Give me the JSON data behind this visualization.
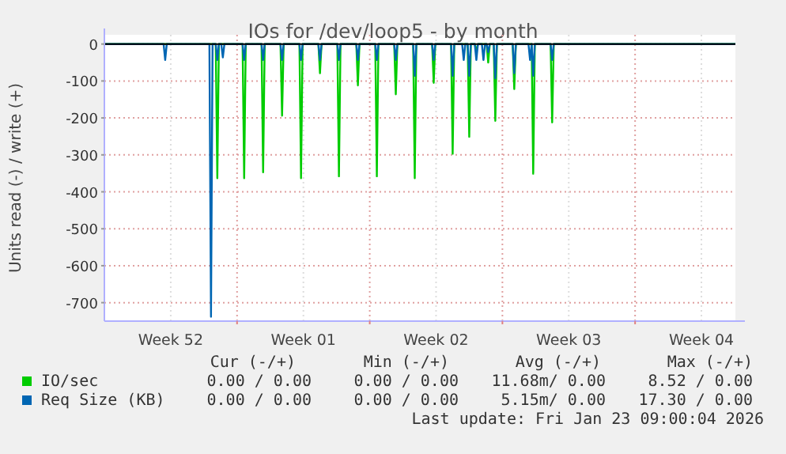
{
  "chart_data": {
    "type": "line",
    "title": "IOs for /dev/loop5 - by month",
    "ylabel": "Units read (-) / write (+)",
    "xlim": [
      "2025-12-22T00:00",
      "2026-01-24T07:00"
    ],
    "xticks": [
      {
        "value": "2025-12-25T12:00",
        "label": "Week 52"
      },
      {
        "value": "2025-12-29T00:00",
        "label": null
      },
      {
        "value": "2026-01-01T12:00",
        "label": "Week 01"
      },
      {
        "value": "2026-01-05T00:00",
        "label": null
      },
      {
        "value": "2026-01-08T12:00",
        "label": "Week 02"
      },
      {
        "value": "2026-01-12T00:00",
        "label": null
      },
      {
        "value": "2026-01-15T12:00",
        "label": "Week 03"
      },
      {
        "value": "2026-01-19T00:00",
        "label": null
      },
      {
        "value": "2026-01-22T12:00",
        "label": "Week 04"
      }
    ],
    "ylim": [
      -750,
      25
    ],
    "yticks": [
      -700,
      -600,
      -500,
      -400,
      -300,
      -200,
      -100,
      0
    ],
    "grid": true,
    "legend": "bottom left",
    "series": [
      {
        "name": "IO/sec",
        "color": "#00cc00",
        "x": [
          "2025-12-22T00:00",
          "2025-12-27T21:00",
          "2025-12-27T23:00",
          "2025-12-28T01:00",
          "2025-12-29T07:00",
          "2025-12-29T09:00",
          "2025-12-29T11:00",
          "2025-12-30T07:00",
          "2025-12-30T09:00",
          "2025-12-30T11:00",
          "2025-12-31T07:00",
          "2025-12-31T09:00",
          "2025-12-31T11:00",
          "2026-01-01T07:00",
          "2026-01-01T09:00",
          "2026-01-01T11:00",
          "2026-01-02T07:00",
          "2026-01-02T09:00",
          "2026-01-02T11:00",
          "2026-01-03T07:00",
          "2026-01-03T09:00",
          "2026-01-03T11:00",
          "2026-01-04T07:00",
          "2026-01-04T09:00",
          "2026-01-04T11:00",
          "2026-01-05T07:00",
          "2026-01-05T09:00",
          "2026-01-05T11:00",
          "2026-01-06T07:00",
          "2026-01-06T09:00",
          "2026-01-06T11:00",
          "2026-01-07T07:00",
          "2026-01-07T09:00",
          "2026-01-07T11:00",
          "2026-01-08T07:00",
          "2026-01-08T09:00",
          "2026-01-08T11:00",
          "2026-01-09T07:00",
          "2026-01-09T09:00",
          "2026-01-09T11:00",
          "2026-01-10T04:00",
          "2026-01-10T06:00",
          "2026-01-10T08:00",
          "2026-01-10T13:00",
          "2026-01-10T15:00",
          "2026-01-10T17:00",
          "2026-01-11T04:00",
          "2026-01-11T06:00",
          "2026-01-11T08:00",
          "2026-01-11T13:00",
          "2026-01-11T15:00",
          "2026-01-11T17:00",
          "2026-01-12T13:00",
          "2026-01-12T15:00",
          "2026-01-12T17:00",
          "2026-01-13T13:00",
          "2026-01-13T15:00",
          "2026-01-13T17:00",
          "2026-01-14T13:00",
          "2026-01-14T15:00",
          "2026-01-14T17:00",
          "2026-01-24T07:00"
        ],
        "values": [
          0,
          0,
          -363,
          0,
          0,
          -363,
          0,
          0,
          -347,
          0,
          0,
          -194,
          0,
          0,
          -363,
          0,
          0,
          -79,
          0,
          0,
          -358,
          0,
          0,
          -112,
          0,
          0,
          -358,
          0,
          0,
          -136,
          0,
          0,
          -363,
          0,
          0,
          -105,
          0,
          0,
          -297,
          0,
          0,
          -251,
          0,
          0,
          -20,
          0,
          0,
          -50,
          0,
          0,
          -208,
          0,
          0,
          -122,
          0,
          0,
          -351,
          0,
          0,
          -212,
          0,
          0
        ]
      },
      {
        "name": "Req Size (KB)",
        "color": "#0066b3",
        "x": [
          "2025-12-22T00:00",
          "2025-12-25T03:00",
          "2025-12-25T05:00",
          "2025-12-25T07:00",
          "2025-12-27T13:00",
          "2025-12-27T15:00",
          "2025-12-27T17:00",
          "2025-12-27T21:00",
          "2025-12-27T23:00",
          "2025-12-28T01:00",
          "2025-12-28T04:00",
          "2025-12-28T06:00",
          "2025-12-28T08:00",
          "2025-12-29T07:00",
          "2025-12-29T09:00",
          "2025-12-29T11:00",
          "2025-12-30T07:00",
          "2025-12-30T09:00",
          "2025-12-30T11:00",
          "2025-12-31T07:00",
          "2025-12-31T09:00",
          "2025-12-31T11:00",
          "2026-01-01T07:00",
          "2026-01-01T09:00",
          "2026-01-01T11:00",
          "2026-01-02T07:00",
          "2026-01-02T09:00",
          "2026-01-02T11:00",
          "2026-01-03T07:00",
          "2026-01-03T09:00",
          "2026-01-03T11:00",
          "2026-01-04T07:00",
          "2026-01-04T09:00",
          "2026-01-04T11:00",
          "2026-01-05T07:00",
          "2026-01-05T09:00",
          "2026-01-05T11:00",
          "2026-01-06T07:00",
          "2026-01-06T09:00",
          "2026-01-06T11:00",
          "2026-01-07T07:00",
          "2026-01-07T09:00",
          "2026-01-07T11:00",
          "2026-01-08T07:00",
          "2026-01-08T09:00",
          "2026-01-08T11:00",
          "2026-01-09T07:00",
          "2026-01-09T09:00",
          "2026-01-09T11:00",
          "2026-01-09T21:00",
          "2026-01-09T23:00",
          "2026-01-10T01:00",
          "2026-01-10T04:00",
          "2026-01-10T06:00",
          "2026-01-10T08:00",
          "2026-01-10T13:00",
          "2026-01-10T15:00",
          "2026-01-10T17:00",
          "2026-01-10T22:00",
          "2026-01-11T00:00",
          "2026-01-11T02:00",
          "2026-01-11T04:00",
          "2026-01-11T06:00",
          "2026-01-11T08:00",
          "2026-01-11T13:00",
          "2026-01-11T15:00",
          "2026-01-11T17:00",
          "2026-01-12T13:00",
          "2026-01-12T15:00",
          "2026-01-12T17:00",
          "2026-01-13T09:00",
          "2026-01-13T11:00",
          "2026-01-13T13:00",
          "2026-01-13T15:00",
          "2026-01-13T17:00",
          "2026-01-14T13:00",
          "2026-01-14T15:00",
          "2026-01-14T17:00",
          "2026-01-24T07:00"
        ],
        "values": [
          0,
          0,
          -43,
          0,
          0,
          -738,
          0,
          0,
          -43,
          0,
          0,
          -36,
          0,
          0,
          -43,
          0,
          0,
          -43,
          0,
          0,
          -43,
          0,
          0,
          -43,
          0,
          0,
          -43,
          0,
          0,
          -43,
          0,
          0,
          -43,
          0,
          0,
          -43,
          0,
          0,
          -43,
          0,
          0,
          -86,
          0,
          0,
          -43,
          0,
          0,
          -86,
          0,
          0,
          -43,
          0,
          0,
          -86,
          0,
          0,
          -43,
          0,
          0,
          -43,
          0,
          0,
          -22,
          0,
          0,
          -93,
          0,
          0,
          -79,
          0,
          0,
          -43,
          0,
          -86,
          0,
          0,
          -43,
          0,
          0
        ]
      }
    ],
    "annotations": [
      "Cur (-/+)",
      "Min (-/+)",
      "Avg (-/+)",
      "Max (-/+)",
      "0.00 / 0.00",
      "0.00 / 0.00",
      "11.68m/ 0.00",
      "8.52 / 0.00",
      "0.00 / 0.00",
      "0.00 / 0.00",
      "5.15m/ 0.00",
      "17.30 / 0.00",
      "Last update: Fri Jan 23 09:00:04 2026"
    ]
  }
}
